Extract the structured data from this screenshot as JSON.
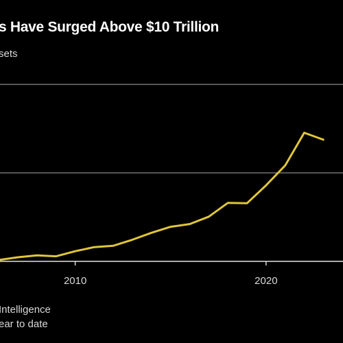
{
  "header": {
    "title": "s Have Surged Above $10 Trillion",
    "subtitle": "sets"
  },
  "footer": {
    "source": "Intelligence",
    "note": "ear to date"
  },
  "chart_data": {
    "type": "line",
    "title": "s Have Surged Above $10 Trillion",
    "subtitle": "sets",
    "xlabel": "",
    "ylabel": "",
    "x_ticks": [
      2010,
      2020
    ],
    "x": [
      2006,
      2007,
      2008,
      2009,
      2010,
      2011,
      2012,
      2013,
      2014,
      2015,
      2016,
      2017,
      2018,
      2019,
      2020,
      2021,
      2022,
      2023
    ],
    "series": [
      {
        "name": "",
        "values": [
          0.15,
          0.45,
          0.65,
          0.55,
          1.1,
          1.55,
          1.7,
          2.35,
          3.1,
          3.75,
          4.05,
          4.85,
          6.35,
          6.3,
          8.25,
          10.4,
          13.95,
          13.2
        ]
      }
    ],
    "ylim": [
      0,
      19.2
    ],
    "xlim": [
      2006.06,
      2024.03
    ],
    "gridlines_y": [
      0,
      9.6,
      19.2
    ],
    "grid": "horizontal",
    "legend": "none",
    "colors": {
      "line": "#e0c63a",
      "grid": "#8a8a8a",
      "axis": "#e6e6e6",
      "background": "#000000",
      "text": "#ffffff"
    }
  }
}
